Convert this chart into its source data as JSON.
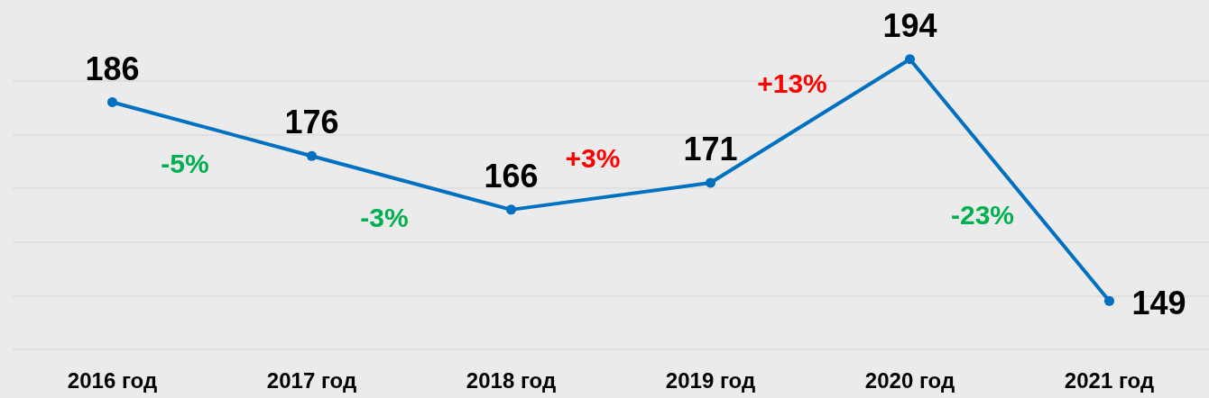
{
  "chart_data": {
    "type": "line",
    "categories": [
      "2016 год",
      "2017 год",
      "2018 год",
      "2019 год",
      "2020 год",
      "2021 год"
    ],
    "series": [
      {
        "color": "#0070c0",
        "values": [
          186,
          176,
          166,
          171,
          194,
          149
        ]
      }
    ],
    "yticks": [
      {
        "value": 140,
        "label": null
      },
      {
        "value": 150,
        "label": null
      },
      {
        "value": 160,
        "label": null
      },
      {
        "value": 170,
        "label": null
      },
      {
        "value": 180,
        "label": null
      },
      {
        "value": 190,
        "label": null
      }
    ],
    "grid": "y",
    "marker": "circle",
    "data_labels": true,
    "tick_labels": "x",
    "annotations": [
      "-5%",
      "-3%",
      "+3%",
      "+13%",
      "-23%"
    ]
  }
}
